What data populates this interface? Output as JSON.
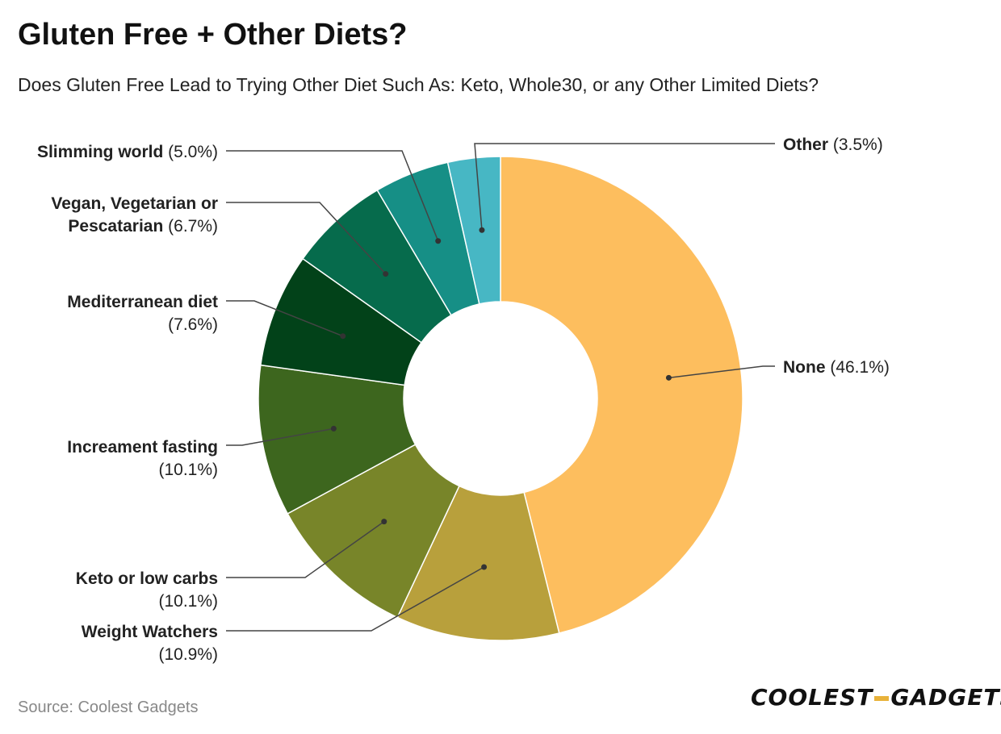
{
  "header": {
    "title": "Gluten Free + Other Diets?",
    "subtitle": "Does Gluten Free Lead to Trying Other Diet Such As: Keto, Whole30, or any Other Limited Diets?"
  },
  "footer": {
    "source": "Source: Coolest Gadgets",
    "logo_left": "COOLEST",
    "logo_right": "GADGETS"
  },
  "chart_data": {
    "type": "pie",
    "title": "Gluten Free + Other Diets?",
    "subtitle": "Does Gluten Free Lead to Trying Other Diet Such As: Keto, Whole30, or any Other Limited Diets?",
    "donut": true,
    "slices": [
      {
        "name": "None",
        "value": 46.1,
        "pct_label": "(46.1%)",
        "color": "#fdbe5e"
      },
      {
        "name": "Weight Watchers",
        "value": 10.9,
        "pct_label": "(10.9%)",
        "color": "#b8a03c"
      },
      {
        "name": "Keto or low carbs",
        "value": 10.1,
        "pct_label": "(10.1%)",
        "color": "#788529"
      },
      {
        "name": "Increament fasting",
        "value": 10.1,
        "pct_label": "(10.1%)",
        "color": "#3d661e"
      },
      {
        "name": "Mediterranean diet",
        "value": 7.6,
        "pct_label": "(7.6%)",
        "color": "#024219"
      },
      {
        "name": "Vegan, Vegetarian or Pescatarian",
        "value": 6.7,
        "pct_label": "(6.7%)",
        "color": "#066b4c"
      },
      {
        "name": "Slimming world",
        "value": 5.0,
        "pct_label": "(5.0%)",
        "color": "#168f86"
      },
      {
        "name": "Other",
        "value": 3.5,
        "pct_label": "(3.5%)",
        "color": "#47b7c4"
      }
    ]
  }
}
